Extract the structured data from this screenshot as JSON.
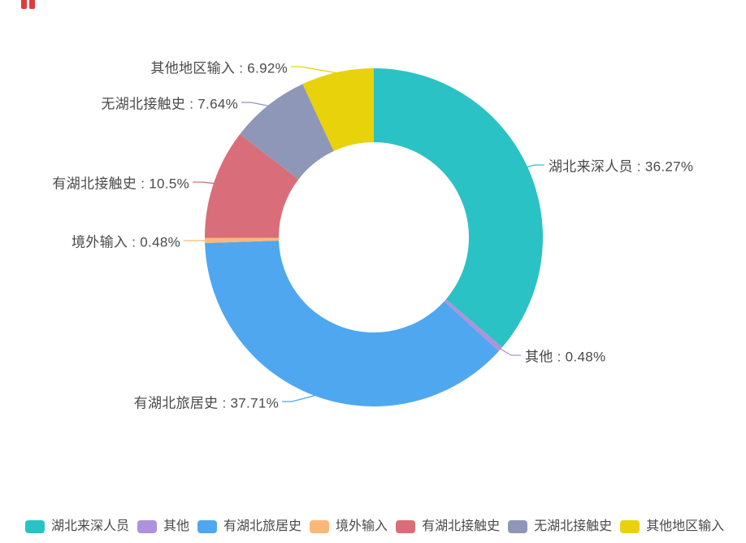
{
  "page": {
    "background_color": "#FFFFFF",
    "label_text_color": "#4A4A4A",
    "corner_artifact_color": "#E23B3B"
  },
  "chart_data": {
    "type": "pie",
    "subtype": "donut",
    "title": "",
    "unit": "%",
    "start_angle": "top",
    "direction": "clockwise",
    "legend_position": "bottom",
    "total": 100,
    "series": [
      {
        "name": "湖北来深人员",
        "value": 36.27,
        "color": "#2BC2C5",
        "label": "湖北来深人员 : 36.27%"
      },
      {
        "name": "其他",
        "value": 0.48,
        "color": "#AE92DB",
        "label": "其他 : 0.48%"
      },
      {
        "name": "有湖北旅居史",
        "value": 37.71,
        "color": "#4FA7F0",
        "label": "有湖北旅居史 : 37.71%"
      },
      {
        "name": "境外输入",
        "value": 0.48,
        "color": "#F9B878",
        "label": "境外输入 : 0.48%"
      },
      {
        "name": "有湖北接触史",
        "value": 10.5,
        "color": "#D96D79",
        "label": "有湖北接触史 : 10.5%"
      },
      {
        "name": "无湖北接触史",
        "value": 7.64,
        "color": "#8E97B8",
        "label": "无湖北接触史 : 7.64%"
      },
      {
        "name": "其他地区输入",
        "value": 6.92,
        "color": "#E8D20B",
        "label": "其他地区输入 : 6.92%"
      }
    ]
  }
}
